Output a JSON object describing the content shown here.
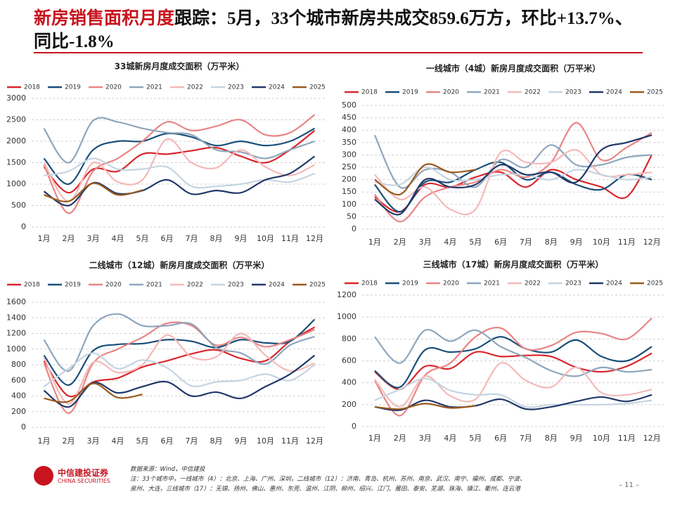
{
  "header": {
    "title_highlight": "新房销售面积月度",
    "title_rest": "跟踪：5月，33个城市新房共成交859.6万方，环比+13.7%、同比-1.8%"
  },
  "chart_data": [
    {
      "type": "line",
      "title": "33城新房月度成交面积（万平米）",
      "categories": [
        "1月",
        "2月",
        "3月",
        "4月",
        "5月",
        "6月",
        "7月",
        "8月",
        "9月",
        "10月",
        "11月",
        "12月"
      ],
      "ylim": [
        0,
        3000
      ],
      "yticks": [
        0,
        500,
        1000,
        1500,
        2000,
        2500,
        3000
      ],
      "grid": true,
      "series": [
        {
          "name": "2018",
          "color": "#d9262c",
          "values": [
            1400,
            800,
            1350,
            1300,
            1700,
            1700,
            1780,
            1850,
            1650,
            1500,
            1800,
            2250
          ]
        },
        {
          "name": "2019",
          "color": "#1a4f7a",
          "values": [
            1600,
            1000,
            1800,
            2000,
            2000,
            2180,
            2100,
            1900,
            2000,
            1900,
            2000,
            2300
          ]
        },
        {
          "name": "2020",
          "color": "#e88585",
          "values": [
            1450,
            320,
            1300,
            1600,
            2000,
            2450,
            2250,
            2350,
            2500,
            2150,
            2200,
            2620
          ]
        },
        {
          "name": "2021",
          "color": "#8ea6bc",
          "values": [
            2300,
            1500,
            2480,
            2450,
            2300,
            2200,
            2150,
            1800,
            1750,
            1600,
            1800,
            2000
          ]
        },
        {
          "name": "2022",
          "color": "#f4b9b9",
          "values": [
            1500,
            600,
            1500,
            1050,
            1100,
            2050,
            1500,
            1380,
            1800,
            1400,
            1200,
            1450
          ]
        },
        {
          "name": "2023",
          "color": "#c6d4e1",
          "values": [
            1200,
            1300,
            1600,
            1350,
            1350,
            1400,
            950,
            950,
            1000,
            1100,
            1050,
            1250
          ]
        },
        {
          "name": "2024",
          "color": "#22386a",
          "values": [
            830,
            500,
            1030,
            780,
            850,
            1100,
            770,
            850,
            800,
            1100,
            1250,
            1650
          ]
        },
        {
          "name": "2025",
          "color": "#9a5a1e",
          "values": [
            750,
            600,
            1020,
            750,
            860,
            null,
            null,
            null,
            null,
            null,
            null,
            null
          ]
        }
      ]
    },
    {
      "type": "line",
      "title": "一线城市（4城）新房月度成交面积（万平米）",
      "categories": [
        "1月",
        "2月",
        "3月",
        "4月",
        "5月",
        "6月",
        "7月",
        "8月",
        "9月",
        "10月",
        "11月",
        "12月"
      ],
      "ylim": [
        0,
        500
      ],
      "yticks": [
        0,
        50,
        100,
        150,
        200,
        250,
        300,
        350,
        400,
        450,
        500
      ],
      "grid": true,
      "series": [
        {
          "name": "2018",
          "color": "#d9262c",
          "values": [
            130,
            70,
            180,
            170,
            210,
            230,
            170,
            240,
            200,
            170,
            130,
            300
          ]
        },
        {
          "name": "2019",
          "color": "#1a4f7a",
          "values": [
            180,
            70,
            190,
            190,
            240,
            270,
            200,
            230,
            180,
            160,
            220,
            200
          ]
        },
        {
          "name": "2020",
          "color": "#e88585",
          "values": [
            140,
            30,
            130,
            170,
            190,
            240,
            210,
            270,
            430,
            280,
            330,
            390
          ]
        },
        {
          "name": "2021",
          "color": "#8ea6bc",
          "values": [
            380,
            170,
            240,
            230,
            170,
            280,
            250,
            340,
            260,
            260,
            290,
            300
          ]
        },
        {
          "name": "2022",
          "color": "#f4b9b9",
          "values": [
            220,
            120,
            170,
            80,
            80,
            310,
            270,
            270,
            320,
            220,
            220,
            230
          ]
        },
        {
          "name": "2023",
          "color": "#c6d4e1",
          "values": [
            190,
            180,
            250,
            200,
            200,
            220,
            220,
            200,
            240,
            220,
            200,
            210
          ]
        },
        {
          "name": "2024",
          "color": "#22386a",
          "values": [
            120,
            60,
            200,
            170,
            180,
            260,
            220,
            230,
            190,
            320,
            350,
            380
          ]
        },
        {
          "name": "2025",
          "color": "#9a5a1e",
          "values": [
            200,
            140,
            260,
            230,
            240,
            null,
            null,
            null,
            null,
            null,
            null,
            null
          ]
        }
      ]
    },
    {
      "type": "line",
      "title": "二线城市（12城）新房月度成交面积（万平米）",
      "categories": [
        "1月",
        "2月",
        "3月",
        "4月",
        "5月",
        "6月",
        "7月",
        "8月",
        "9月",
        "10月",
        "11月",
        "12月"
      ],
      "ylim": [
        0,
        1600
      ],
      "yticks": [
        0,
        200,
        400,
        600,
        800,
        1000,
        1200,
        1400,
        1600
      ],
      "grid": true,
      "series": [
        {
          "name": "2018",
          "color": "#d9262c",
          "values": [
            850,
            400,
            580,
            630,
            770,
            850,
            940,
            990,
            880,
            850,
            1100,
            1280
          ]
        },
        {
          "name": "2019",
          "color": "#1a4f7a",
          "values": [
            920,
            540,
            980,
            1060,
            1070,
            1120,
            1100,
            1020,
            1120,
            1080,
            1100,
            1380
          ]
        },
        {
          "name": "2020",
          "color": "#e88585",
          "values": [
            820,
            180,
            820,
            1000,
            1150,
            1330,
            1300,
            1050,
            1150,
            1030,
            1120,
            1250
          ]
        },
        {
          "name": "2021",
          "color": "#8ea6bc",
          "values": [
            1120,
            720,
            1300,
            1450,
            1300,
            1300,
            1320,
            1020,
            950,
            810,
            1050,
            1160
          ]
        },
        {
          "name": "2022",
          "color": "#f4b9b9",
          "values": [
            890,
            300,
            830,
            700,
            800,
            1180,
            900,
            900,
            1200,
            920,
            720,
            820
          ]
        },
        {
          "name": "2023",
          "color": "#c6d4e1",
          "values": [
            520,
            750,
            950,
            750,
            860,
            760,
            530,
            580,
            600,
            680,
            600,
            800
          ]
        },
        {
          "name": "2024",
          "color": "#22386a",
          "values": [
            470,
            260,
            570,
            440,
            520,
            580,
            400,
            450,
            370,
            520,
            680,
            920
          ]
        },
        {
          "name": "2025",
          "color": "#9a5a1e",
          "values": [
            370,
            330,
            560,
            380,
            420,
            null,
            null,
            null,
            null,
            null,
            null,
            null
          ]
        }
      ]
    },
    {
      "type": "line",
      "title": "三线城市（17城）新房月度成交面积（万平米）",
      "categories": [
        "1月",
        "2月",
        "3月",
        "4月",
        "5月",
        "6月",
        "7月",
        "8月",
        "9月",
        "10月",
        "11月",
        "12月"
      ],
      "ylim": [
        0,
        1200
      ],
      "yticks": [
        0,
        200,
        400,
        600,
        800,
        1000,
        1200
      ],
      "grid": true,
      "series": [
        {
          "name": "2018",
          "color": "#d9262c",
          "values": [
            500,
            340,
            550,
            530,
            680,
            640,
            650,
            640,
            540,
            500,
            550,
            670
          ]
        },
        {
          "name": "2019",
          "color": "#1a4f7a",
          "values": [
            510,
            360,
            700,
            680,
            710,
            820,
            710,
            680,
            790,
            640,
            600,
            730
          ]
        },
        {
          "name": "2020",
          "color": "#e88585",
          "values": [
            420,
            100,
            470,
            580,
            820,
            900,
            710,
            740,
            860,
            850,
            800,
            990
          ]
        },
        {
          "name": "2021",
          "color": "#8ea6bc",
          "values": [
            820,
            580,
            880,
            780,
            880,
            730,
            630,
            510,
            460,
            540,
            500,
            520
          ]
        },
        {
          "name": "2022",
          "color": "#f4b9b9",
          "values": [
            430,
            180,
            460,
            280,
            250,
            580,
            420,
            360,
            540,
            310,
            290,
            340
          ]
        },
        {
          "name": "2023",
          "color": "#c6d4e1",
          "values": [
            240,
            340,
            440,
            330,
            290,
            290,
            180,
            200,
            200,
            200,
            210,
            240
          ]
        },
        {
          "name": "2024",
          "color": "#22386a",
          "values": [
            180,
            150,
            240,
            180,
            190,
            250,
            160,
            180,
            230,
            270,
            230,
            290
          ]
        },
        {
          "name": "2025",
          "color": "#9a5a1e",
          "values": [
            180,
            160,
            210,
            170,
            190,
            null,
            null,
            null,
            null,
            null,
            null,
            null
          ]
        }
      ]
    }
  ],
  "footer": {
    "logo_cn": "中信建投证券",
    "logo_en": "CHINA SECURITIES",
    "source": "数据来源：Wind，中信建投",
    "note1": "注：33个城市中，一线城市（4）：北京、上海、广州、深圳，二线城市（12）：济南、青岛、杭州、苏州、南京、武汉、南宁、福州、成都、宁波、",
    "note2": "泉州、大连，三线城市（17）：无锡、扬州、佛山、惠州、东莞、温州、江阴、柳州、绍兴、江门、莆田、泰安、芜湖、珠海、镇江、衢州、连云港",
    "page": "– 11 –"
  }
}
